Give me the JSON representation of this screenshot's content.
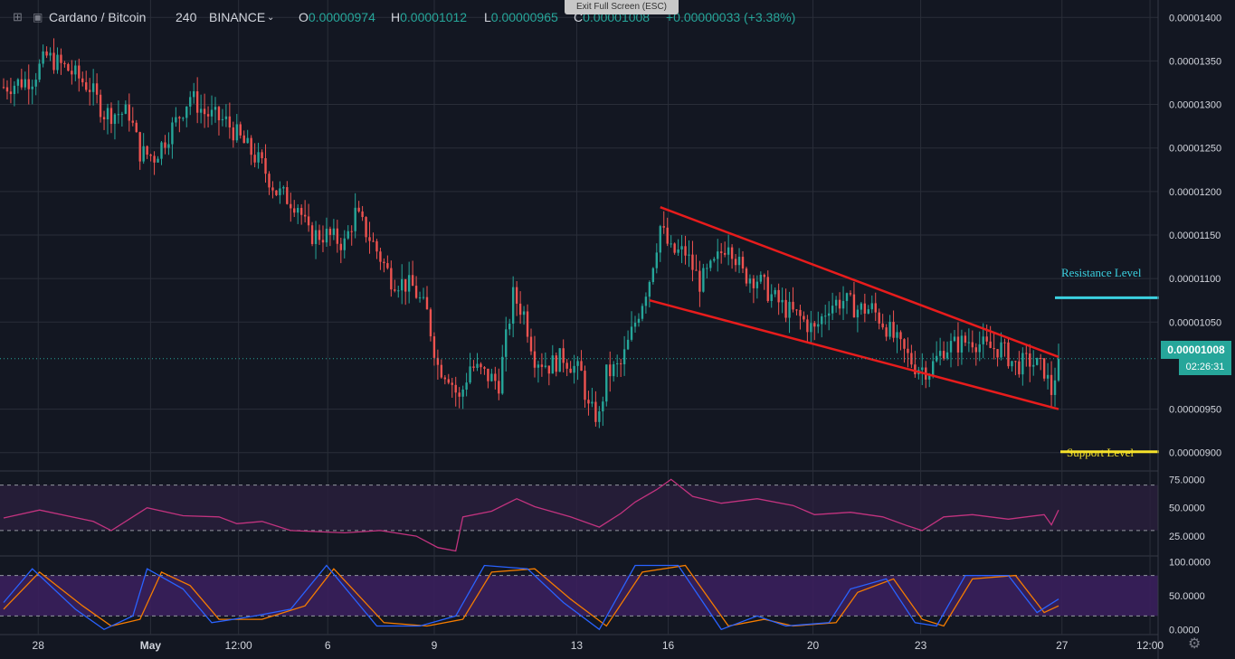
{
  "header": {
    "symbol": "Cardano / Bitcoin",
    "interval": "240",
    "exchange": "BINANCE",
    "open_label": "O",
    "open": "0.00000974",
    "high_label": "H",
    "high": "0.00001012",
    "low_label": "L",
    "low": "0.00000965",
    "close_label": "C",
    "close": "0.00001008",
    "change": "+0.00000033 (+3.38%)",
    "exit_fullscreen": "Exit Full Screen (ESC)"
  },
  "price_tag": {
    "last_price": "0.00001008",
    "countdown": "02:26:31"
  },
  "annotations": {
    "resistance_label": "Resistance Level",
    "support_label": "Support Level"
  },
  "colors": {
    "background": "#131722",
    "grid": "#2a2e39",
    "up": "#26a69a",
    "down": "#ef5350",
    "trendline": "#e81c1c",
    "resistance": "#3bd1e0",
    "support": "#f5e12a",
    "rsi_line": "#c2337f",
    "stoch_k": "#2962ff",
    "stoch_d": "#f57c00",
    "band_fill": "#3a1f5c"
  },
  "chart_data": {
    "type": "candlestick",
    "price_axis": {
      "range": [
        8.8e-06,
        1.42e-05
      ],
      "ticks": [
        "0.00001400",
        "0.00001350",
        "0.00001300",
        "0.00001250",
        "0.00001200",
        "0.00001150",
        "0.00001100",
        "0.00001050",
        "0.00000950",
        "0.00000900"
      ]
    },
    "time_axis": {
      "ticks": [
        {
          "label": "28",
          "frac": 0.033
        },
        {
          "label": "May",
          "frac": 0.13
        },
        {
          "label": "12:00",
          "frac": 0.206
        },
        {
          "label": "6",
          "frac": 0.283
        },
        {
          "label": "9",
          "frac": 0.375
        },
        {
          "label": "13",
          "frac": 0.498
        },
        {
          "label": "16",
          "frac": 0.577
        },
        {
          "label": "20",
          "frac": 0.702
        },
        {
          "label": "23",
          "frac": 0.795
        },
        {
          "label": "27",
          "frac": 0.917
        },
        {
          "label": "12:00",
          "frac": 0.993
        }
      ]
    },
    "price_path": [
      [
        0,
        1.32e-05
      ],
      [
        8,
        1.33e-05
      ],
      [
        12,
        1.355e-05
      ],
      [
        18,
        1.34e-05
      ],
      [
        24,
        1.32e-05
      ],
      [
        28,
        1.29e-05
      ],
      [
        35,
        1.29e-05
      ],
      [
        38,
        1.245e-05
      ],
      [
        42,
        1.24e-05
      ],
      [
        48,
        1.28e-05
      ],
      [
        52,
        1.31e-05
      ],
      [
        56,
        1.29e-05
      ],
      [
        62,
        1.28e-05
      ],
      [
        68,
        1.25e-05
      ],
      [
        72,
        1.23e-05
      ],
      [
        76,
        1.2e-05
      ],
      [
        82,
        1.185e-05
      ],
      [
        85,
        1.15e-05
      ],
      [
        90,
        1.15e-05
      ],
      [
        95,
        1.14e-05
      ],
      [
        98,
        1.175e-05
      ],
      [
        103,
        1.14e-05
      ],
      [
        108,
        1.1e-05
      ],
      [
        114,
        1.09e-05
      ],
      [
        118,
        1.06e-05
      ],
      [
        121,
        1e-05
      ],
      [
        124,
        9.9e-06
      ],
      [
        127,
        9.6e-06
      ],
      [
        130,
        1e-05
      ],
      [
        134,
        9.9e-06
      ],
      [
        138,
        9.8e-06
      ],
      [
        142,
        1.08e-05
      ],
      [
        145,
        1.06e-05
      ],
      [
        148,
        1.01e-05
      ],
      [
        152,
        1e-05
      ],
      [
        156,
        1.01e-05
      ],
      [
        161,
        9.9e-06
      ],
      [
        163,
        9.5e-06
      ],
      [
        166,
        9.4e-06
      ],
      [
        168,
        9.9e-06
      ],
      [
        172,
        1e-05
      ],
      [
        176,
        1.05e-05
      ],
      [
        180,
        1.1e-05
      ],
      [
        183,
        1.16e-05
      ],
      [
        186,
        1.13e-05
      ],
      [
        190,
        1.13e-05
      ],
      [
        194,
        1.095e-05
      ],
      [
        198,
        1.115e-05
      ],
      [
        202,
        1.145e-05
      ],
      [
        206,
        1.105e-05
      ],
      [
        210,
        1.1e-05
      ],
      [
        214,
        1.08e-05
      ],
      [
        218,
        1.065e-05
      ],
      [
        222,
        1.055e-05
      ],
      [
        226,
        1.04e-05
      ],
      [
        230,
        1.07e-05
      ],
      [
        234,
        1.075e-05
      ],
      [
        238,
        1.065e-05
      ],
      [
        242,
        1.065e-05
      ],
      [
        246,
        1.045e-05
      ],
      [
        250,
        1.02e-05
      ],
      [
        254,
        1e-05
      ],
      [
        258,
        9.95e-06
      ],
      [
        262,
        1.02e-05
      ],
      [
        266,
        1.025e-05
      ],
      [
        270,
        1.03e-05
      ],
      [
        274,
        1.02e-05
      ],
      [
        278,
        1.02e-05
      ],
      [
        282,
        1e-05
      ],
      [
        286,
        1.005e-05
      ],
      [
        290,
        9.95e-06
      ],
      [
        292,
        9.7e-06
      ],
      [
        294,
        1.008e-05
      ]
    ],
    "candle_count": 295,
    "trendlines": {
      "upper": [
        [
          183,
          1.182e-05
        ],
        [
          294,
          1.01e-05
        ]
      ],
      "lower": [
        [
          180,
          1.075e-05
        ],
        [
          294,
          9.5e-06
        ]
      ]
    },
    "resistance_level": 1.078e-05,
    "support_level": 9.01e-06,
    "rsi": {
      "range": [
        10,
        80
      ],
      "ticks": [
        "75.0000",
        "50.0000",
        "25.0000"
      ],
      "bands": [
        70,
        30
      ],
      "path": [
        [
          0,
          41
        ],
        [
          10,
          48
        ],
        [
          25,
          38
        ],
        [
          30,
          30
        ],
        [
          40,
          50
        ],
        [
          50,
          43
        ],
        [
          60,
          42
        ],
        [
          65,
          36
        ],
        [
          72,
          38
        ],
        [
          80,
          30
        ],
        [
          95,
          28
        ],
        [
          105,
          30
        ],
        [
          115,
          25
        ],
        [
          121,
          15
        ],
        [
          126,
          12
        ],
        [
          128,
          42
        ],
        [
          136,
          47
        ],
        [
          143,
          58
        ],
        [
          148,
          51
        ],
        [
          158,
          42
        ],
        [
          166,
          33
        ],
        [
          172,
          45
        ],
        [
          176,
          55
        ],
        [
          182,
          66
        ],
        [
          186,
          75
        ],
        [
          192,
          60
        ],
        [
          200,
          54
        ],
        [
          210,
          58
        ],
        [
          220,
          52
        ],
        [
          226,
          44
        ],
        [
          236,
          46
        ],
        [
          245,
          42
        ],
        [
          252,
          34
        ],
        [
          256,
          30
        ],
        [
          262,
          42
        ],
        [
          270,
          44
        ],
        [
          280,
          40
        ],
        [
          290,
          44
        ],
        [
          292,
          35
        ],
        [
          294,
          48
        ]
      ]
    },
    "stoch": {
      "range": [
        -5,
        105
      ],
      "ticks": [
        "100.0000",
        "50.0000",
        "0.0000"
      ],
      "bands": [
        80,
        20
      ],
      "k": [
        [
          0,
          40
        ],
        [
          8,
          90
        ],
        [
          20,
          30
        ],
        [
          28,
          0
        ],
        [
          36,
          20
        ],
        [
          40,
          90
        ],
        [
          50,
          60
        ],
        [
          58,
          10
        ],
        [
          70,
          20
        ],
        [
          80,
          30
        ],
        [
          90,
          95
        ],
        [
          104,
          5
        ],
        [
          116,
          5
        ],
        [
          126,
          20
        ],
        [
          134,
          95
        ],
        [
          146,
          90
        ],
        [
          156,
          40
        ],
        [
          166,
          0
        ],
        [
          176,
          95
        ],
        [
          188,
          95
        ],
        [
          200,
          0
        ],
        [
          210,
          20
        ],
        [
          218,
          5
        ],
        [
          230,
          10
        ],
        [
          236,
          60
        ],
        [
          246,
          75
        ],
        [
          254,
          10
        ],
        [
          260,
          5
        ],
        [
          268,
          80
        ],
        [
          280,
          80
        ],
        [
          288,
          25
        ],
        [
          294,
          45
        ]
      ],
      "d": [
        [
          0,
          30
        ],
        [
          10,
          85
        ],
        [
          22,
          35
        ],
        [
          30,
          5
        ],
        [
          38,
          15
        ],
        [
          44,
          85
        ],
        [
          52,
          65
        ],
        [
          60,
          15
        ],
        [
          72,
          15
        ],
        [
          84,
          35
        ],
        [
          92,
          90
        ],
        [
          106,
          10
        ],
        [
          118,
          5
        ],
        [
          128,
          15
        ],
        [
          136,
          85
        ],
        [
          148,
          90
        ],
        [
          158,
          45
        ],
        [
          168,
          5
        ],
        [
          178,
          85
        ],
        [
          190,
          95
        ],
        [
          202,
          5
        ],
        [
          212,
          15
        ],
        [
          220,
          5
        ],
        [
          232,
          10
        ],
        [
          238,
          55
        ],
        [
          248,
          75
        ],
        [
          256,
          15
        ],
        [
          262,
          5
        ],
        [
          270,
          75
        ],
        [
          282,
          80
        ],
        [
          290,
          25
        ],
        [
          294,
          35
        ]
      ]
    }
  }
}
